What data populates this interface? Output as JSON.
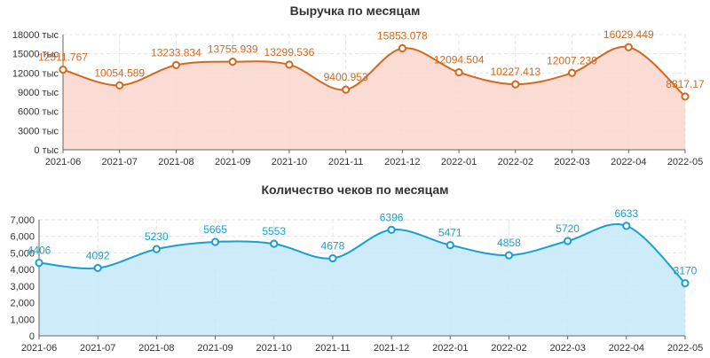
{
  "chart_data": [
    {
      "type": "area",
      "title": "Выручка по месяцам",
      "categories": [
        "2021-06",
        "2021-07",
        "2021-08",
        "2021-09",
        "2021-10",
        "2021-11",
        "2021-12",
        "2022-01",
        "2022-02",
        "2022-03",
        "2022-04",
        "2022-05"
      ],
      "values": [
        12511.767,
        10054.589,
        13233.834,
        13755.939,
        13299.536,
        9400.953,
        15853.078,
        12094.504,
        10227.413,
        12007.239,
        16029.449,
        8317.17
      ],
      "value_labels": [
        "12511.767",
        "10054.589",
        "13233.834",
        "13755.939",
        "13299.536",
        "9400.953",
        "15853.078",
        "12094.504",
        "10227.413",
        "12007.239",
        "16029.449",
        "8317.17"
      ],
      "ylim": [
        0,
        18000
      ],
      "yticks": [
        0,
        3000,
        6000,
        9000,
        12000,
        15000,
        18000
      ],
      "ytick_labels": [
        "0 тыс",
        "3000 тыс",
        "6000 тыс",
        "9000 тыс",
        "12000 тыс",
        "15000 тыс",
        "18000 тыс"
      ],
      "smooth": true,
      "grid": true,
      "colors": {
        "line": "#d2691e",
        "fill": "#f9d6cc",
        "label": "#d2691e"
      }
    },
    {
      "type": "area",
      "title": "Количество чеков по месяцам",
      "categories": [
        "2021-06",
        "2021-07",
        "2021-08",
        "2021-09",
        "2021-10",
        "2021-11",
        "2021-12",
        "2022-01",
        "2022-02",
        "2022-03",
        "2022-04",
        "2022-05"
      ],
      "values": [
        4406,
        4092,
        5230,
        5665,
        5553,
        4678,
        6396,
        5471,
        4858,
        5720,
        6633,
        3170
      ],
      "value_labels": [
        "4406",
        "4092",
        "5230",
        "5665",
        "5553",
        "4678",
        "6396",
        "5471",
        "4858",
        "5720",
        "6633",
        "3170"
      ],
      "ylim": [
        0,
        7000
      ],
      "yticks": [
        0,
        1000,
        2000,
        3000,
        4000,
        5000,
        6000,
        7000
      ],
      "ytick_labels": [
        "0",
        "1,000",
        "2,000",
        "3,000",
        "4,000",
        "5,000",
        "6,000",
        "7,000"
      ],
      "smooth": true,
      "grid": true,
      "colors": {
        "line": "#1a9fd0",
        "fill": "#c4e7f8",
        "label": "#1a9fd0"
      }
    }
  ]
}
